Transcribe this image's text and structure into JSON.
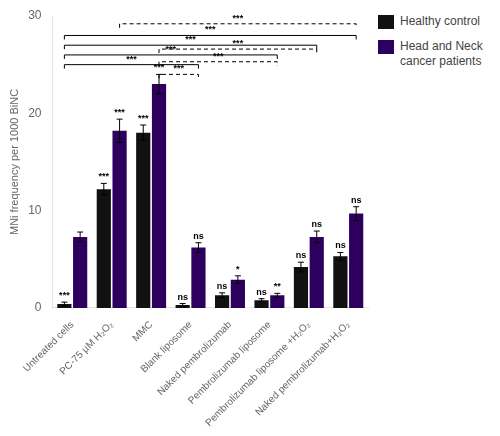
{
  "chart_data": {
    "type": "bar",
    "ylabel": "MNi frequency per 1000 BiNC",
    "categories": [
      "Untreated cells",
      "PC-75 µM H₂O₂",
      "MMC",
      "Blank liposome",
      "Naked pembrolizumab",
      "Pembrolizumab liposome",
      "Pembrolizumab liposome +H₂O₂",
      "Naked pembrolizumab+H₂O₂"
    ],
    "series": [
      {
        "name": "Healthy control",
        "color": "#111111",
        "values": [
          0.4,
          12.2,
          18.0,
          0.3,
          1.3,
          0.8,
          4.2,
          5.3
        ],
        "errors": [
          0.2,
          0.6,
          0.8,
          0.15,
          0.25,
          0.15,
          0.5,
          0.4
        ],
        "significance": [
          "***",
          "***",
          "***",
          "ns",
          "ns",
          "ns",
          "ns",
          "ns"
        ]
      },
      {
        "name": "Head and Neck\ncancer patients",
        "color": "#2d0060",
        "values": [
          7.3,
          18.2,
          23.0,
          6.2,
          2.9,
          1.3,
          7.3,
          9.7
        ],
        "errors": [
          0.5,
          1.2,
          1.0,
          0.5,
          0.4,
          0.2,
          0.6,
          0.7
        ],
        "significance": [
          null,
          "***",
          "***",
          "ns",
          "*",
          "**",
          "ns",
          "ns"
        ]
      }
    ],
    "brackets": [
      {
        "from_category": "Untreated cells",
        "from_series": "Healthy control",
        "to_category": "Blank liposome",
        "to_series": "Head and Neck\ncancer patients",
        "y": 25.0,
        "label": "***",
        "line_style": "solid"
      },
      {
        "from_category": "Untreated cells",
        "from_series": "Healthy control",
        "to_category": "Pembrolizumab liposome",
        "to_series": "Head and Neck\ncancer patients",
        "y": 26.0,
        "label": "***",
        "line_style": "solid"
      },
      {
        "from_category": "Untreated cells",
        "from_series": "Healthy control",
        "to_category": "Pembrolizumab liposome +H₂O₂",
        "to_series": "Head and Neck\ncancer patients",
        "y": 27.0,
        "label": "***",
        "line_style": "solid"
      },
      {
        "from_category": "Untreated cells",
        "from_series": "Healthy control",
        "to_category": "Naked pembrolizumab+H₂O₂",
        "to_series": "Head and Neck\ncancer patients",
        "y": 28.0,
        "label": "***",
        "line_style": "solid"
      },
      {
        "from_category": "MMC",
        "from_series": "Head and Neck\ncancer patients",
        "to_category": "Blank liposome",
        "to_series": "Head and Neck\ncancer patients",
        "y": 24.0,
        "label": "***",
        "line_style": "dashed"
      },
      {
        "from_category": "MMC",
        "from_series": "Head and Neck\ncancer patients",
        "to_category": "Pembrolizumab liposome",
        "to_series": "Head and Neck\ncancer patients",
        "y": 25.3,
        "label": "***",
        "line_style": "dashed"
      },
      {
        "from_category": "MMC",
        "from_series": "Head and Neck\ncancer patients",
        "to_category": "Pembrolizumab liposome +H₂O₂",
        "to_series": "Head and Neck\ncancer patients",
        "y": 26.6,
        "label": "***",
        "line_style": "dashed"
      },
      {
        "from_category": "PC-75 µM H₂O₂",
        "from_series": "Head and Neck\ncancer patients",
        "to_category": "Naked pembrolizumab+H₂O₂",
        "to_series": "Head and Neck\ncancer patients",
        "y": 29.2,
        "label": "***",
        "line_style": "dashed"
      }
    ],
    "ylim": [
      0,
      30
    ],
    "yticks": [
      0,
      10,
      20,
      30
    ],
    "grid": false,
    "legend": "right"
  }
}
